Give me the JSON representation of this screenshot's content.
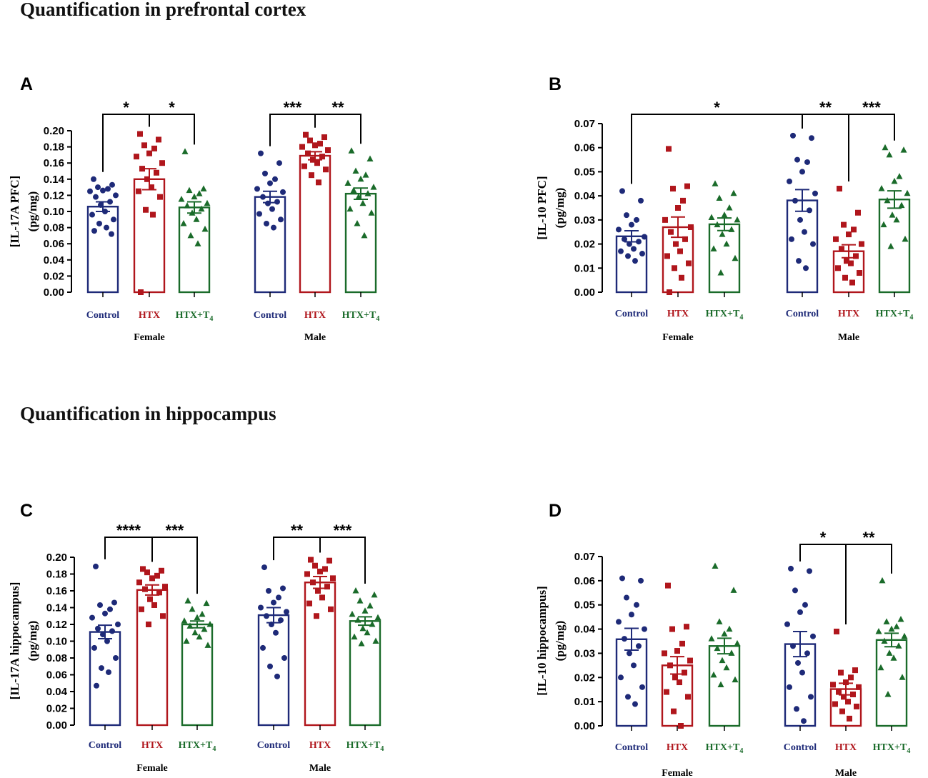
{
  "sections": {
    "top_title": "Quantification in prefrontal cortex",
    "bottom_title": "Quantification in hippocampus"
  },
  "colors": {
    "Control": "#1e2a78",
    "HTX": "#b0161c",
    "HTX+T4": "#1a6b2a"
  },
  "chart_data": [
    {
      "panel": "A",
      "type": "bar",
      "ylabel_line1": "[IL-17A PFC]",
      "ylabel_line2": "(pg/mg)",
      "ylim": [
        0,
        0.2
      ],
      "yticks": [
        "0.00",
        "0.02",
        "0.04",
        "0.06",
        "0.08",
        "0.10",
        "0.12",
        "0.14",
        "0.16",
        "0.18",
        "0.20"
      ],
      "groups": [
        "Female",
        "Male"
      ],
      "categories": [
        "Control",
        "HTX",
        "HTX+T4"
      ],
      "series": [
        {
          "group": "Female",
          "name": "Control",
          "mean": 0.106,
          "sem": 0.006,
          "points": [
            0.14,
            0.133,
            0.13,
            0.128,
            0.126,
            0.125,
            0.12,
            0.118,
            0.112,
            0.108,
            0.1,
            0.096,
            0.09,
            0.085,
            0.08,
            0.076,
            0.072
          ]
        },
        {
          "group": "Female",
          "name": "HTX",
          "mean": 0.14,
          "sem": 0.013,
          "points": [
            0.196,
            0.189,
            0.182,
            0.178,
            0.172,
            0.168,
            0.16,
            0.153,
            0.148,
            0.14,
            0.13,
            0.125,
            0.118,
            0.102,
            0.096,
            0.0
          ]
        },
        {
          "group": "Female",
          "name": "HTX+T4",
          "mean": 0.105,
          "sem": 0.007,
          "points": [
            0.174,
            0.128,
            0.126,
            0.122,
            0.118,
            0.115,
            0.11,
            0.107,
            0.103,
            0.098,
            0.09,
            0.085,
            0.078,
            0.07,
            0.06
          ]
        },
        {
          "group": "Male",
          "name": "Control",
          "mean": 0.118,
          "sem": 0.007,
          "points": [
            0.172,
            0.16,
            0.147,
            0.14,
            0.135,
            0.128,
            0.124,
            0.118,
            0.112,
            0.11,
            0.103,
            0.097,
            0.09,
            0.085,
            0.08
          ]
        },
        {
          "group": "Male",
          "name": "HTX",
          "mean": 0.169,
          "sem": 0.005,
          "points": [
            0.195,
            0.192,
            0.188,
            0.184,
            0.182,
            0.18,
            0.176,
            0.172,
            0.168,
            0.164,
            0.16,
            0.156,
            0.152,
            0.145,
            0.136
          ]
        },
        {
          "group": "Male",
          "name": "HTX+T4",
          "mean": 0.122,
          "sem": 0.007,
          "points": [
            0.175,
            0.165,
            0.15,
            0.145,
            0.14,
            0.135,
            0.13,
            0.126,
            0.122,
            0.118,
            0.11,
            0.103,
            0.098,
            0.085,
            0.07
          ]
        }
      ],
      "comparisons": [
        {
          "from": [
            0,
            0
          ],
          "to": [
            0,
            1
          ],
          "label": "*",
          "level": 0
        },
        {
          "from": [
            0,
            1
          ],
          "to": [
            0,
            2
          ],
          "label": "*",
          "level": 0
        },
        {
          "from": [
            1,
            0
          ],
          "to": [
            1,
            1
          ],
          "label": "***",
          "level": 0
        },
        {
          "from": [
            1,
            1
          ],
          "to": [
            1,
            2
          ],
          "label": "**",
          "level": 0
        }
      ]
    },
    {
      "panel": "B",
      "type": "bar",
      "ylabel_line1": "[IL-10 PFC]",
      "ylabel_line2": "(pg/mg)",
      "ylim": [
        0,
        0.07
      ],
      "yticks": [
        "0.00",
        "0.01",
        "0.02",
        "0.03",
        "0.04",
        "0.05",
        "0.06",
        "0.07"
      ],
      "groups": [
        "Female",
        "Male"
      ],
      "categories": [
        "Control",
        "HTX",
        "HTX+T4"
      ],
      "series": [
        {
          "group": "Female",
          "name": "Control",
          "mean": 0.0232,
          "sem": 0.0023,
          "points": [
            0.042,
            0.038,
            0.032,
            0.03,
            0.028,
            0.026,
            0.023,
            0.022,
            0.021,
            0.02,
            0.018,
            0.017,
            0.016,
            0.015,
            0.013
          ]
        },
        {
          "group": "Female",
          "name": "HTX",
          "mean": 0.027,
          "sem": 0.0042,
          "points": [
            0.0595,
            0.044,
            0.043,
            0.038,
            0.035,
            0.03,
            0.027,
            0.025,
            0.022,
            0.02,
            0.017,
            0.015,
            0.012,
            0.01,
            0.006,
            0.0
          ]
        },
        {
          "group": "Female",
          "name": "HTX+T4",
          "mean": 0.0282,
          "sem": 0.0026,
          "points": [
            0.045,
            0.041,
            0.039,
            0.035,
            0.032,
            0.031,
            0.03,
            0.028,
            0.026,
            0.024,
            0.02,
            0.018,
            0.014,
            0.008
          ]
        },
        {
          "group": "Male",
          "name": "Control",
          "mean": 0.0381,
          "sem": 0.0045,
          "points": [
            0.065,
            0.064,
            0.055,
            0.054,
            0.05,
            0.046,
            0.041,
            0.038,
            0.034,
            0.03,
            0.025,
            0.022,
            0.02,
            0.013,
            0.01
          ]
        },
        {
          "group": "Male",
          "name": "HTX",
          "mean": 0.017,
          "sem": 0.0027,
          "points": [
            0.043,
            0.033,
            0.028,
            0.026,
            0.024,
            0.022,
            0.02,
            0.018,
            0.015,
            0.013,
            0.012,
            0.01,
            0.008,
            0.006,
            0.004
          ]
        },
        {
          "group": "Male",
          "name": "HTX+T4",
          "mean": 0.0385,
          "sem": 0.0036,
          "points": [
            0.06,
            0.059,
            0.057,
            0.048,
            0.046,
            0.043,
            0.041,
            0.038,
            0.036,
            0.032,
            0.03,
            0.028,
            0.022,
            0.019
          ]
        }
      ],
      "comparisons": [
        {
          "from": [
            0,
            0
          ],
          "to": [
            1,
            0
          ],
          "label": "*",
          "level": 0
        },
        {
          "from": [
            1,
            0
          ],
          "to": [
            1,
            1
          ],
          "label": "**",
          "level": 0
        },
        {
          "from": [
            1,
            1
          ],
          "to": [
            1,
            2
          ],
          "label": "***",
          "level": 0
        }
      ]
    },
    {
      "panel": "C",
      "type": "bar",
      "ylabel_line1": "[IL-17A hippocampus]",
      "ylabel_line2": "(pg/mg)",
      "ylim": [
        0,
        0.2
      ],
      "yticks": [
        "0.00",
        "0.02",
        "0.04",
        "0.06",
        "0.08",
        "0.10",
        "0.12",
        "0.14",
        "0.16",
        "0.18",
        "0.20"
      ],
      "groups": [
        "Female",
        "Male"
      ],
      "categories": [
        "Control",
        "HTX",
        "HTX+T4"
      ],
      "series": [
        {
          "group": "Female",
          "name": "Control",
          "mean": 0.111,
          "sem": 0.008,
          "points": [
            0.189,
            0.146,
            0.143,
            0.138,
            0.133,
            0.128,
            0.12,
            0.115,
            0.112,
            0.108,
            0.1,
            0.092,
            0.08,
            0.068,
            0.063,
            0.047
          ]
        },
        {
          "group": "Female",
          "name": "HTX",
          "mean": 0.161,
          "sem": 0.006,
          "points": [
            0.186,
            0.184,
            0.182,
            0.178,
            0.175,
            0.17,
            0.165,
            0.162,
            0.158,
            0.15,
            0.143,
            0.138,
            0.13,
            0.12
          ]
        },
        {
          "group": "Female",
          "name": "HTX+T4",
          "mean": 0.12,
          "sem": 0.004,
          "points": [
            0.148,
            0.145,
            0.138,
            0.132,
            0.128,
            0.124,
            0.12,
            0.118,
            0.114,
            0.11,
            0.105,
            0.1,
            0.095
          ]
        },
        {
          "group": "Male",
          "name": "Control",
          "mean": 0.131,
          "sem": 0.009,
          "points": [
            0.188,
            0.163,
            0.16,
            0.152,
            0.146,
            0.14,
            0.135,
            0.13,
            0.125,
            0.12,
            0.11,
            0.092,
            0.08,
            0.07,
            0.058
          ]
        },
        {
          "group": "Male",
          "name": "HTX",
          "mean": 0.17,
          "sem": 0.007,
          "points": [
            0.197,
            0.196,
            0.19,
            0.186,
            0.183,
            0.18,
            0.175,
            0.17,
            0.165,
            0.16,
            0.152,
            0.145,
            0.138,
            0.13
          ]
        },
        {
          "group": "Male",
          "name": "HTX+T4",
          "mean": 0.124,
          "sem": 0.005,
          "points": [
            0.16,
            0.155,
            0.148,
            0.142,
            0.136,
            0.132,
            0.128,
            0.125,
            0.12,
            0.115,
            0.11,
            0.105,
            0.1,
            0.097
          ]
        }
      ],
      "comparisons": [
        {
          "from": [
            0,
            0
          ],
          "to": [
            0,
            1
          ],
          "label": "****",
          "level": 0
        },
        {
          "from": [
            0,
            1
          ],
          "to": [
            0,
            2
          ],
          "label": "***",
          "level": 0
        },
        {
          "from": [
            1,
            0
          ],
          "to": [
            1,
            1
          ],
          "label": "**",
          "level": 0
        },
        {
          "from": [
            1,
            1
          ],
          "to": [
            1,
            2
          ],
          "label": "***",
          "level": 0
        }
      ]
    },
    {
      "panel": "D",
      "type": "bar",
      "ylabel_line1": "[IL-10 hippocampus]",
      "ylabel_line2": "(pg/mg)",
      "ylim": [
        0,
        0.07
      ],
      "yticks": [
        "0.00",
        "0.01",
        "0.02",
        "0.03",
        "0.04",
        "0.05",
        "0.06",
        "0.07"
      ],
      "groups": [
        "Female",
        "Male"
      ],
      "categories": [
        "Control",
        "HTX",
        "HTX+T4"
      ],
      "series": [
        {
          "group": "Female",
          "name": "Control",
          "mean": 0.0358,
          "sem": 0.0045,
          "points": [
            0.061,
            0.06,
            0.053,
            0.05,
            0.046,
            0.043,
            0.04,
            0.036,
            0.033,
            0.03,
            0.025,
            0.02,
            0.016,
            0.012,
            0.009
          ]
        },
        {
          "group": "Female",
          "name": "HTX",
          "mean": 0.025,
          "sem": 0.0036,
          "points": [
            0.058,
            0.041,
            0.04,
            0.034,
            0.031,
            0.03,
            0.027,
            0.025,
            0.022,
            0.02,
            0.018,
            0.014,
            0.012,
            0.006,
            0.0
          ]
        },
        {
          "group": "Female",
          "name": "HTX+T4",
          "mean": 0.033,
          "sem": 0.0032,
          "points": [
            0.066,
            0.056,
            0.043,
            0.04,
            0.038,
            0.036,
            0.034,
            0.032,
            0.03,
            0.027,
            0.024,
            0.021,
            0.019,
            0.017
          ]
        },
        {
          "group": "Male",
          "name": "Control",
          "mean": 0.0338,
          "sem": 0.0052,
          "points": [
            0.065,
            0.064,
            0.056,
            0.05,
            0.047,
            0.042,
            0.037,
            0.033,
            0.03,
            0.026,
            0.022,
            0.016,
            0.012,
            0.007,
            0.002
          ]
        },
        {
          "group": "Male",
          "name": "HTX",
          "mean": 0.0152,
          "sem": 0.0024,
          "points": [
            0.039,
            0.023,
            0.022,
            0.02,
            0.018,
            0.017,
            0.016,
            0.014,
            0.013,
            0.012,
            0.01,
            0.009,
            0.008,
            0.006,
            0.003
          ]
        },
        {
          "group": "Male",
          "name": "HTX+T4",
          "mean": 0.0355,
          "sem": 0.0028,
          "points": [
            0.06,
            0.044,
            0.043,
            0.041,
            0.04,
            0.039,
            0.037,
            0.035,
            0.033,
            0.03,
            0.028,
            0.024,
            0.02,
            0.013
          ]
        }
      ],
      "comparisons": [
        {
          "from": [
            1,
            0
          ],
          "to": [
            1,
            1
          ],
          "label": "*",
          "level": 0
        },
        {
          "from": [
            1,
            1
          ],
          "to": [
            1,
            2
          ],
          "label": "**",
          "level": 0
        }
      ]
    }
  ]
}
